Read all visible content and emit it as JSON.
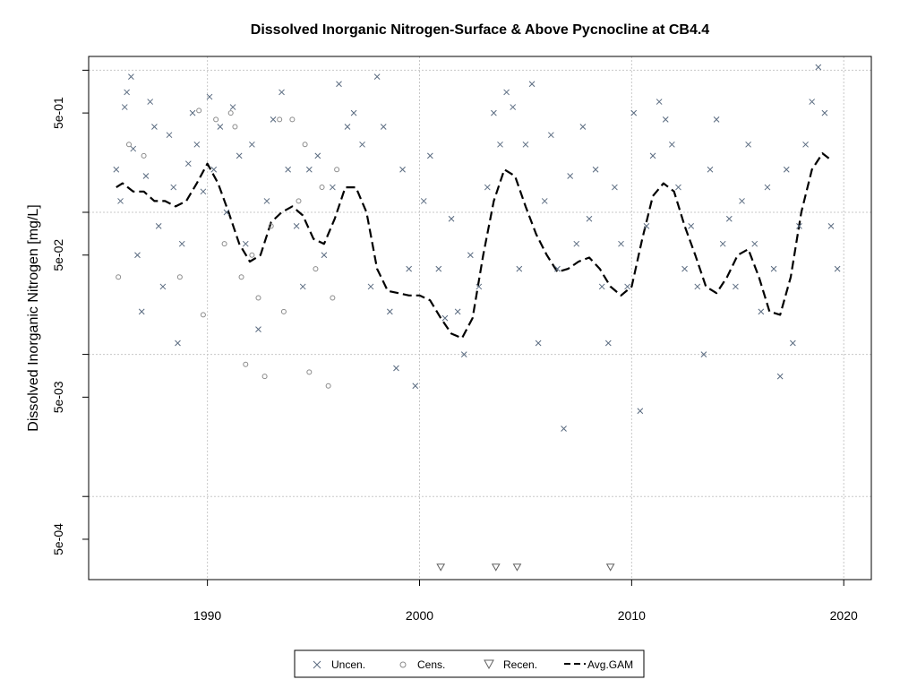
{
  "chart_data": {
    "type": "scatter",
    "title": "Dissolved Inorganic Nitrogen-Surface & Above Pycnocline at CB4.4",
    "ylabel": "Dissolved Inorganic Nitrogen [mg/L]",
    "xlabel": "",
    "xlim": [
      1984.4,
      2021.3
    ],
    "ylim": [
      0.00026,
      1.25
    ],
    "yscale": "log",
    "grid": true,
    "legend_position": "bottom",
    "x_ticks": [
      1990,
      2000,
      2010,
      2020
    ],
    "x_tick_labels": [
      "1990",
      "2000",
      "2010",
      "2020"
    ],
    "y_ticks": [
      0.0005,
      0.005,
      0.05,
      0.5
    ],
    "y_tick_labels": [
      "5e-04",
      "5e-03",
      "5e-02",
      "5e-01"
    ],
    "y_minor_ticks": [
      0.001,
      0.01,
      0.1,
      1.0
    ],
    "legend": [
      "Uncen.",
      "Cens.",
      "Recen.",
      "Avg.GAM"
    ],
    "colors": {
      "uncensored": "#5a6b80",
      "censored": "#8a8a8a",
      "recensored": "#606060",
      "gam": "#000000",
      "grid": "#c8c8c8"
    },
    "series": [
      {
        "name": "Uncen.",
        "marker": "x",
        "points": [
          [
            1985.7,
            0.2
          ],
          [
            1985.9,
            0.12
          ],
          [
            1986.1,
            0.55
          ],
          [
            1986.2,
            0.7
          ],
          [
            1986.4,
            0.9
          ],
          [
            1986.5,
            0.28
          ],
          [
            1986.7,
            0.05
          ],
          [
            1986.9,
            0.02
          ],
          [
            1987.1,
            0.18
          ],
          [
            1987.3,
            0.6
          ],
          [
            1987.5,
            0.4
          ],
          [
            1987.7,
            0.08
          ],
          [
            1987.9,
            0.03
          ],
          [
            1988.2,
            0.35
          ],
          [
            1988.4,
            0.15
          ],
          [
            1988.6,
            0.012
          ],
          [
            1988.8,
            0.06
          ],
          [
            1989.1,
            0.22
          ],
          [
            1989.3,
            0.5
          ],
          [
            1989.5,
            0.3
          ],
          [
            1989.8,
            0.14
          ],
          [
            1990.1,
            0.65
          ],
          [
            1990.3,
            0.2
          ],
          [
            1990.6,
            0.4
          ],
          [
            1990.9,
            0.1
          ],
          [
            1991.2,
            0.55
          ],
          [
            1991.5,
            0.25
          ],
          [
            1991.8,
            0.06
          ],
          [
            1992.1,
            0.3
          ],
          [
            1992.4,
            0.015
          ],
          [
            1992.8,
            0.12
          ],
          [
            1993.1,
            0.45
          ],
          [
            1993.5,
            0.7
          ],
          [
            1993.8,
            0.2
          ],
          [
            1994.2,
            0.08
          ],
          [
            1994.5,
            0.03
          ],
          [
            1994.8,
            0.2
          ],
          [
            1995.2,
            0.25
          ],
          [
            1995.5,
            0.05
          ],
          [
            1995.9,
            0.15
          ],
          [
            1996.2,
            0.8
          ],
          [
            1996.6,
            0.4
          ],
          [
            1996.9,
            0.5
          ],
          [
            1997.3,
            0.3
          ],
          [
            1997.7,
            0.03
          ],
          [
            1998.0,
            0.9
          ],
          [
            1998.3,
            0.4
          ],
          [
            1998.6,
            0.02
          ],
          [
            1998.9,
            0.008
          ],
          [
            1999.2,
            0.2
          ],
          [
            1999.5,
            0.04
          ],
          [
            1999.8,
            0.006
          ],
          [
            2000.2,
            0.12
          ],
          [
            2000.5,
            0.25
          ],
          [
            2000.9,
            0.04
          ],
          [
            2001.2,
            0.018
          ],
          [
            2001.5,
            0.09
          ],
          [
            2001.8,
            0.02
          ],
          [
            2002.1,
            0.01
          ],
          [
            2002.4,
            0.05
          ],
          [
            2002.8,
            0.03
          ],
          [
            2003.2,
            0.15
          ],
          [
            2003.5,
            0.5
          ],
          [
            2003.8,
            0.3
          ],
          [
            2004.1,
            0.7
          ],
          [
            2004.4,
            0.55
          ],
          [
            2004.7,
            0.04
          ],
          [
            2005.0,
            0.3
          ],
          [
            2005.3,
            0.8
          ],
          [
            2005.6,
            0.012
          ],
          [
            2005.9,
            0.12
          ],
          [
            2006.2,
            0.35
          ],
          [
            2006.5,
            0.04
          ],
          [
            2006.8,
            0.003
          ],
          [
            2007.1,
            0.18
          ],
          [
            2007.4,
            0.06
          ],
          [
            2007.7,
            0.4
          ],
          [
            2008.0,
            0.09
          ],
          [
            2008.3,
            0.2
          ],
          [
            2008.6,
            0.03
          ],
          [
            2008.9,
            0.012
          ],
          [
            2009.2,
            0.15
          ],
          [
            2009.5,
            0.06
          ],
          [
            2009.8,
            0.03
          ],
          [
            2010.1,
            0.5
          ],
          [
            2010.4,
            0.004
          ],
          [
            2010.7,
            0.08
          ],
          [
            2011.0,
            0.25
          ],
          [
            2011.3,
            0.6
          ],
          [
            2011.6,
            0.45
          ],
          [
            2011.9,
            0.3
          ],
          [
            2012.2,
            0.15
          ],
          [
            2012.5,
            0.04
          ],
          [
            2012.8,
            0.08
          ],
          [
            2013.1,
            0.03
          ],
          [
            2013.4,
            0.01
          ],
          [
            2013.7,
            0.2
          ],
          [
            2014.0,
            0.45
          ],
          [
            2014.3,
            0.06
          ],
          [
            2014.6,
            0.09
          ],
          [
            2014.9,
            0.03
          ],
          [
            2015.2,
            0.12
          ],
          [
            2015.5,
            0.3
          ],
          [
            2015.8,
            0.06
          ],
          [
            2016.1,
            0.02
          ],
          [
            2016.4,
            0.15
          ],
          [
            2016.7,
            0.04
          ],
          [
            2017.0,
            0.007
          ],
          [
            2017.3,
            0.2
          ],
          [
            2017.6,
            0.012
          ],
          [
            2017.9,
            0.08
          ],
          [
            2018.2,
            0.3
          ],
          [
            2018.5,
            0.6
          ],
          [
            2018.8,
            1.05
          ],
          [
            2019.1,
            0.5
          ],
          [
            2019.4,
            0.08
          ],
          [
            2019.7,
            0.04
          ]
        ]
      },
      {
        "name": "Cens.",
        "marker": "o",
        "points": [
          [
            1985.8,
            0.035
          ],
          [
            1986.3,
            0.3
          ],
          [
            1987.0,
            0.25
          ],
          [
            1988.7,
            0.035
          ],
          [
            1989.6,
            0.52
          ],
          [
            1989.8,
            0.019
          ],
          [
            1990.4,
            0.45
          ],
          [
            1990.8,
            0.06
          ],
          [
            1991.1,
            0.5
          ],
          [
            1991.3,
            0.4
          ],
          [
            1991.6,
            0.035
          ],
          [
            1991.8,
            0.0085
          ],
          [
            1992.1,
            0.05
          ],
          [
            1992.4,
            0.025
          ],
          [
            1992.7,
            0.007
          ],
          [
            1993.0,
            0.08
          ],
          [
            1993.4,
            0.45
          ],
          [
            1993.6,
            0.02
          ],
          [
            1994.0,
            0.45
          ],
          [
            1994.3,
            0.12
          ],
          [
            1994.6,
            0.3
          ],
          [
            1994.8,
            0.0075
          ],
          [
            1995.1,
            0.04
          ],
          [
            1995.4,
            0.15
          ],
          [
            1995.7,
            0.006
          ],
          [
            1995.9,
            0.025
          ],
          [
            1996.1,
            0.2
          ]
        ]
      },
      {
        "name": "Recen.",
        "marker": "triangle-down",
        "points": [
          [
            2001.0,
            0.00032
          ],
          [
            2003.6,
            0.00032
          ],
          [
            2004.6,
            0.00032
          ],
          [
            2009.0,
            0.00032
          ]
        ]
      },
      {
        "name": "Avg.GAM",
        "marker": "dashed-line",
        "points": [
          [
            1985.7,
            0.15
          ],
          [
            1986.0,
            0.16
          ],
          [
            1986.5,
            0.14
          ],
          [
            1987.0,
            0.14
          ],
          [
            1987.5,
            0.12
          ],
          [
            1988.0,
            0.12
          ],
          [
            1988.5,
            0.11
          ],
          [
            1989.0,
            0.12
          ],
          [
            1989.5,
            0.16
          ],
          [
            1990.0,
            0.22
          ],
          [
            1990.5,
            0.16
          ],
          [
            1991.0,
            0.1
          ],
          [
            1991.5,
            0.06
          ],
          [
            1992.0,
            0.045
          ],
          [
            1992.5,
            0.05
          ],
          [
            1993.0,
            0.085
          ],
          [
            1993.5,
            0.1
          ],
          [
            1994.0,
            0.11
          ],
          [
            1994.5,
            0.095
          ],
          [
            1995.0,
            0.065
          ],
          [
            1995.5,
            0.06
          ],
          [
            1996.0,
            0.09
          ],
          [
            1996.5,
            0.15
          ],
          [
            1997.0,
            0.15
          ],
          [
            1997.5,
            0.1
          ],
          [
            1998.0,
            0.04
          ],
          [
            1998.5,
            0.028
          ],
          [
            1999.0,
            0.027
          ],
          [
            1999.5,
            0.026
          ],
          [
            2000.0,
            0.026
          ],
          [
            2000.5,
            0.024
          ],
          [
            2001.0,
            0.018
          ],
          [
            2001.5,
            0.014
          ],
          [
            2002.0,
            0.013
          ],
          [
            2002.5,
            0.018
          ],
          [
            2003.0,
            0.05
          ],
          [
            2003.5,
            0.12
          ],
          [
            2004.0,
            0.2
          ],
          [
            2004.5,
            0.18
          ],
          [
            2005.0,
            0.11
          ],
          [
            2005.5,
            0.07
          ],
          [
            2006.0,
            0.05
          ],
          [
            2006.5,
            0.038
          ],
          [
            2007.0,
            0.04
          ],
          [
            2007.5,
            0.045
          ],
          [
            2008.0,
            0.048
          ],
          [
            2008.5,
            0.04
          ],
          [
            2009.0,
            0.03
          ],
          [
            2009.5,
            0.026
          ],
          [
            2010.0,
            0.03
          ],
          [
            2010.5,
            0.065
          ],
          [
            2011.0,
            0.13
          ],
          [
            2011.5,
            0.16
          ],
          [
            2012.0,
            0.14
          ],
          [
            2012.5,
            0.08
          ],
          [
            2013.0,
            0.05
          ],
          [
            2013.5,
            0.03
          ],
          [
            2014.0,
            0.027
          ],
          [
            2014.5,
            0.035
          ],
          [
            2015.0,
            0.05
          ],
          [
            2015.5,
            0.055
          ],
          [
            2016.0,
            0.035
          ],
          [
            2016.5,
            0.02
          ],
          [
            2017.0,
            0.019
          ],
          [
            2017.5,
            0.035
          ],
          [
            2018.0,
            0.1
          ],
          [
            2018.5,
            0.2
          ],
          [
            2019.0,
            0.26
          ],
          [
            2019.3,
            0.24
          ]
        ]
      }
    ]
  }
}
